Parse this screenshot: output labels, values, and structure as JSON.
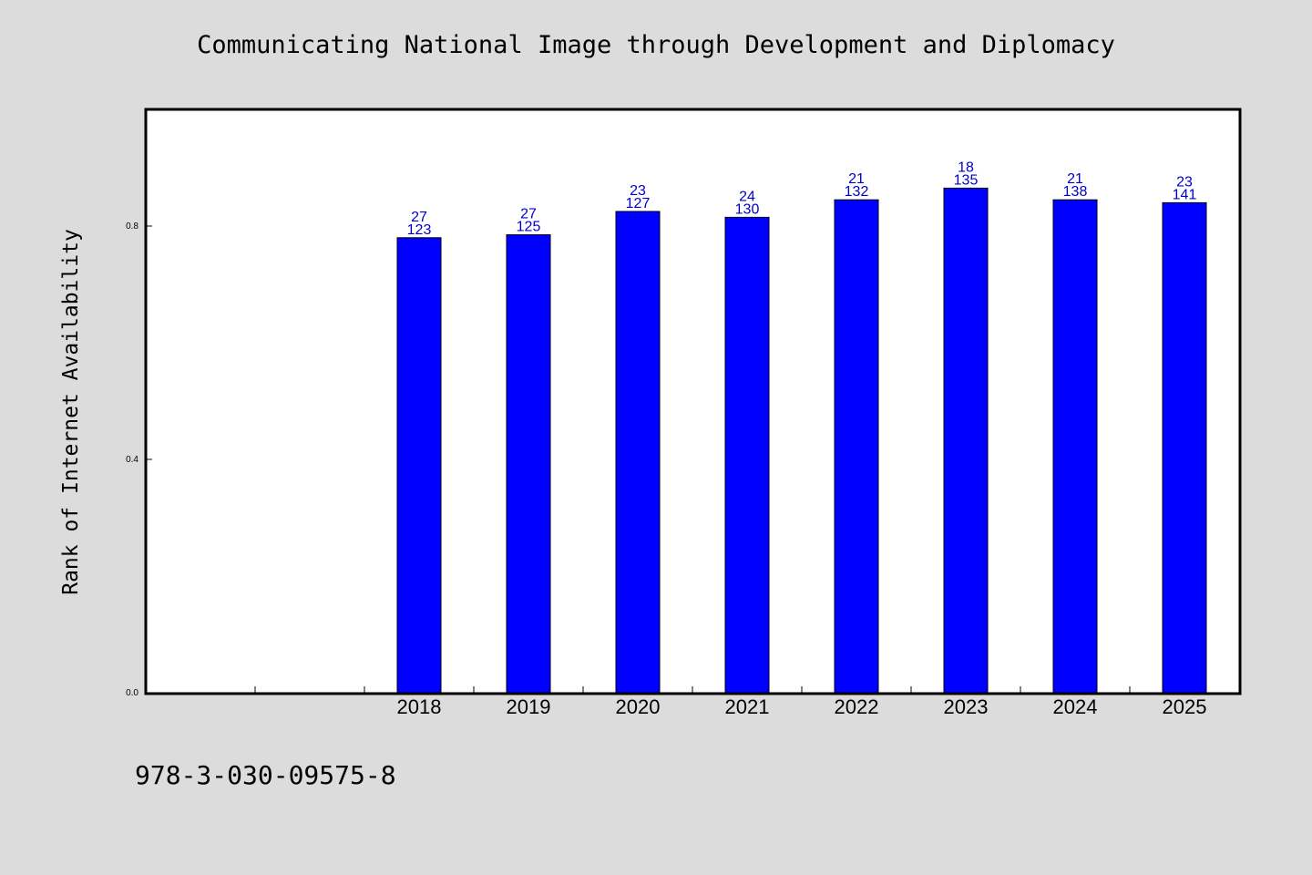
{
  "chart_data": {
    "type": "bar",
    "title": "Communicating National Image through Development and Diplomacy",
    "ylabel": "Rank of Internet Availability",
    "xlabel": "",
    "ylim": [
      0,
      1.0
    ],
    "yticks": [
      "0.0",
      "0.4",
      "0.8"
    ],
    "categories": [
      "2018",
      "2019",
      "2020",
      "2021",
      "2022",
      "2023",
      "2024",
      "2025"
    ],
    "values": [
      0.78,
      0.785,
      0.825,
      0.815,
      0.845,
      0.865,
      0.845,
      0.84
    ],
    "label_top": [
      "27",
      "27",
      "23",
      "24",
      "21",
      "18",
      "21",
      "23"
    ],
    "label_bottom": [
      "123",
      "125",
      "127",
      "130",
      "132",
      "135",
      "138",
      "141"
    ],
    "bar_color": "#0000ff",
    "label_color": "#0000cc",
    "grid": false
  },
  "footer": {
    "isbn": "978-3-030-09575-8"
  }
}
